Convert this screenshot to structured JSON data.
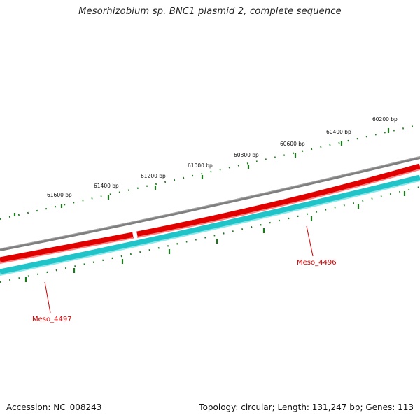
{
  "title": "Mesorhizobium sp. BNC1 plasmid 2, complete sequence",
  "footer": {
    "accession": "Accession: NC_008243",
    "summary": "Topology: circular; Length: 131,247 bp; Genes: 113"
  },
  "colors": {
    "backbone": "#808080",
    "forward_gene": "#e00000",
    "reverse_gene": "#20c4c8",
    "ticks": "#1a7a1a",
    "label_line": "#d00000"
  },
  "scale_labels": [
    "61600 bp",
    "61400 bp",
    "61200 bp",
    "61000 bp",
    "60800 bp",
    "60600 bp",
    "60400 bp",
    "60200 bp"
  ],
  "genes": [
    {
      "name": "Meso_4497",
      "strand": "reverse"
    },
    {
      "name": "Meso_4496",
      "strand": "reverse"
    }
  ]
}
